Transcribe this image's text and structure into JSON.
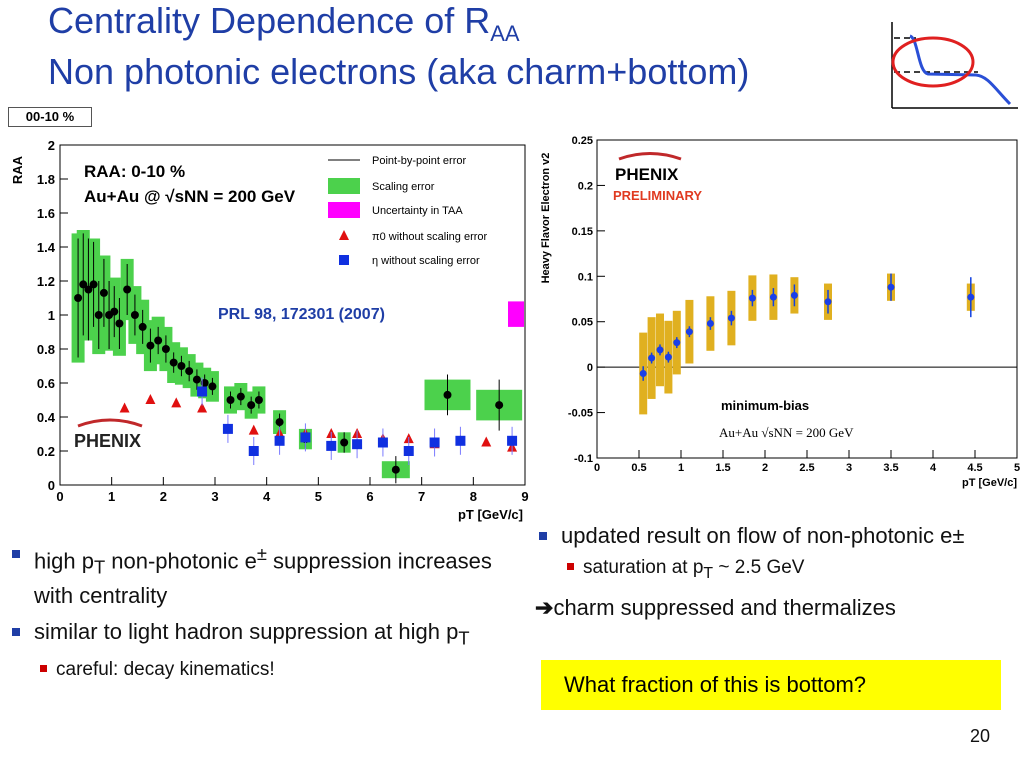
{
  "slide": {
    "title_line1": "Centrality Dependence of R",
    "title_sub": "AA",
    "title_line2": "Non photonic electrons (aka charm+bottom)",
    "centrality_box": "00-10 %",
    "page_number": "20"
  },
  "bullets_left": [
    {
      "type": "main",
      "html": "high p<sub>T</sub> non-photonic e<sup>±</sup> suppression increases with centrality"
    },
    {
      "type": "main",
      "html": "similar to light hadron suppression at high p<sub>T</sub>"
    },
    {
      "type": "sub",
      "html": "careful: decay kinematics!"
    }
  ],
  "bullets_right": {
    "main": "updated result on flow of non-photonic e±",
    "sub": "saturation at p",
    "sub_T": "T",
    "sub_rest": " ~ 2.5 GeV",
    "arrow_text": "charm suppressed and thermalizes",
    "highlight": "What fraction of this is bottom?"
  },
  "chart_data": [
    {
      "type": "scatter",
      "ylabel": "RAA",
      "xlabel": "pT [GeV/c]",
      "xlim": [
        0,
        9
      ],
      "ylim": [
        0,
        2
      ],
      "xticks": [
        "0",
        "1",
        "2",
        "3",
        "4",
        "5",
        "6",
        "7",
        "8",
        "9"
      ],
      "yticks": [
        "0",
        "0.2",
        "0.4",
        "0.6",
        "0.8",
        "1",
        "1.2",
        "1.4",
        "1.6",
        "1.8",
        "2"
      ],
      "annotation_main": "RAA: 0-10 %",
      "annotation_energy": "Au+Au @ √sNN = 200 GeV",
      "reference": "PRL 98, 172301 (2007)",
      "logo": "PHENIX",
      "legend": [
        "Point-by-point error",
        "Scaling error",
        "Uncertainty in TAA",
        "π0 without scaling error",
        "η without scaling error"
      ],
      "electron": {
        "x": [
          0.35,
          0.45,
          0.55,
          0.65,
          0.75,
          0.85,
          0.95,
          1.05,
          1.15,
          1.3,
          1.45,
          1.6,
          1.75,
          1.9,
          2.05,
          2.2,
          2.35,
          2.5,
          2.65,
          2.8,
          2.95,
          3.3,
          3.5,
          3.7,
          3.85,
          4.25,
          4.75,
          5.5,
          6.5,
          7.5,
          8.5
        ],
        "y": [
          1.1,
          1.18,
          1.15,
          1.18,
          1.0,
          1.13,
          1.0,
          1.02,
          0.95,
          1.15,
          1.0,
          0.93,
          0.82,
          0.85,
          0.8,
          0.72,
          0.7,
          0.67,
          0.62,
          0.6,
          0.58,
          0.5,
          0.52,
          0.47,
          0.5,
          0.37,
          0.27,
          0.25,
          0.09,
          0.53,
          0.47
        ],
        "err": [
          0.35,
          0.3,
          0.3,
          0.25,
          0.2,
          0.2,
          0.2,
          0.15,
          0.15,
          0.15,
          0.12,
          0.1,
          0.1,
          0.08,
          0.08,
          0.06,
          0.06,
          0.06,
          0.06,
          0.05,
          0.05,
          0.05,
          0.05,
          0.05,
          0.05,
          0.05,
          0.05,
          0.06,
          0.08,
          0.12,
          0.15
        ],
        "scale_err": [
          0.38,
          0.32,
          0.3,
          0.27,
          0.23,
          0.22,
          0.21,
          0.2,
          0.19,
          0.18,
          0.17,
          0.16,
          0.15,
          0.14,
          0.13,
          0.12,
          0.11,
          0.1,
          0.1,
          0.09,
          0.09,
          0.08,
          0.08,
          0.08,
          0.08,
          0.07,
          0.06,
          0.06,
          0.05,
          0.09,
          0.09
        ]
      },
      "pi0": {
        "x": [
          1.25,
          1.75,
          2.25,
          2.75,
          3.25,
          3.75,
          4.25,
          4.75,
          5.25,
          5.75,
          6.25,
          6.75,
          7.25,
          7.75,
          8.25,
          8.75
        ],
        "y": [
          0.45,
          0.5,
          0.48,
          0.45,
          0.33,
          0.32,
          0.3,
          0.3,
          0.3,
          0.3,
          0.27,
          0.27,
          0.24,
          0.26,
          0.25,
          0.22
        ]
      },
      "eta": {
        "x": [
          2.75,
          3.25,
          3.75,
          4.25,
          4.75,
          5.25,
          5.75,
          6.25,
          6.75,
          7.25,
          7.75,
          8.75
        ],
        "y": [
          0.55,
          0.33,
          0.2,
          0.26,
          0.28,
          0.23,
          0.24,
          0.25,
          0.2,
          0.25,
          0.26,
          0.26
        ]
      }
    },
    {
      "type": "scatter",
      "ylabel": "Heavy Flavor Electron v2",
      "xlabel": "pT [GeV/c]",
      "xlim": [
        0,
        5
      ],
      "ylim": [
        -0.1,
        0.25
      ],
      "xticks": [
        "0",
        "0.5",
        "1",
        "1.5",
        "2",
        "2.5",
        "3",
        "3.5",
        "4",
        "4.5",
        "5"
      ],
      "yticks": [
        "-0.1",
        "-0.05",
        "0",
        "0.05",
        "0.1",
        "0.15",
        "0.2",
        "0.25"
      ],
      "annotation": "minimum-bias",
      "energy": "Au+Au √sNN = 200 GeV",
      "logo": "PHENIX",
      "logo_sub": "PRELIMINARY",
      "x": [
        0.55,
        0.65,
        0.75,
        0.85,
        0.95,
        1.1,
        1.35,
        1.6,
        1.85,
        2.1,
        2.35,
        2.75,
        3.5,
        4.45
      ],
      "y": [
        -0.007,
        0.01,
        0.019,
        0.011,
        0.027,
        0.039,
        0.048,
        0.054,
        0.076,
        0.077,
        0.079,
        0.072,
        0.088,
        0.077
      ],
      "err": [
        0.008,
        0.006,
        0.006,
        0.006,
        0.006,
        0.006,
        0.007,
        0.008,
        0.009,
        0.01,
        0.012,
        0.013,
        0.015,
        0.022
      ],
      "sys": [
        0.045,
        0.045,
        0.04,
        0.04,
        0.035,
        0.035,
        0.03,
        0.03,
        0.025,
        0.025,
        0.02,
        0.02,
        0.015,
        0.015
      ]
    }
  ]
}
